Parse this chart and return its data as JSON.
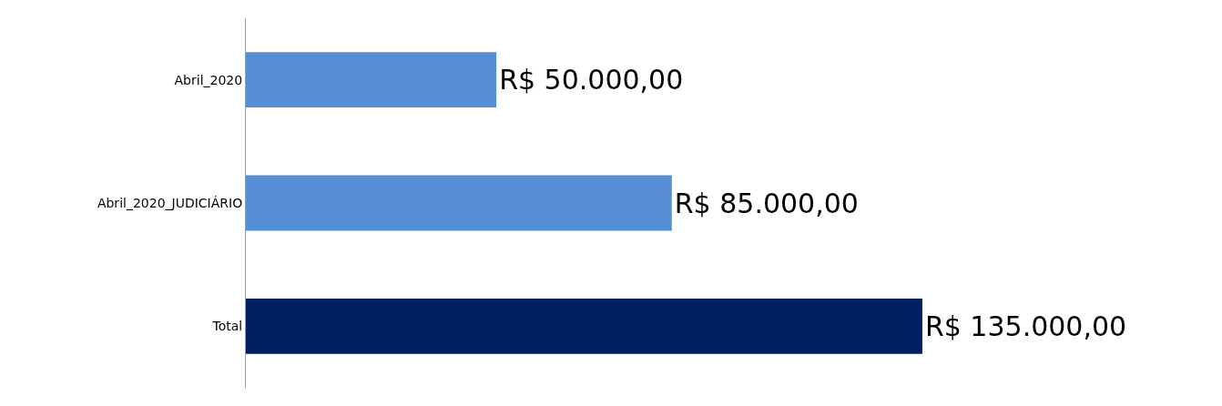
{
  "chart_data": {
    "type": "bar",
    "orientation": "horizontal",
    "categories": [
      "Abril_2020",
      "Abril_2020_JUDICIÁRIO",
      "Total"
    ],
    "values": [
      50000,
      85000,
      135000
    ],
    "colors": [
      "#558ed5",
      "#558ed5",
      "#002060"
    ],
    "value_labels": [
      "R$ 50.000,00",
      "R$ 85.000,00",
      "R$ 135.000,00"
    ],
    "legend": false
  }
}
